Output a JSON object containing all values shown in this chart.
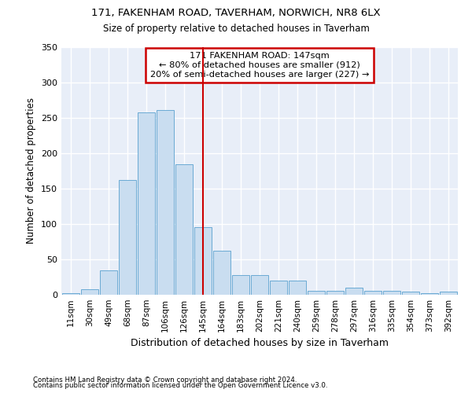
{
  "title1": "171, FAKENHAM ROAD, TAVERHAM, NORWICH, NR8 6LX",
  "title2": "Size of property relative to detached houses in Taverham",
  "xlabel": "Distribution of detached houses by size in Taverham",
  "ylabel": "Number of detached properties",
  "categories": [
    "11sqm",
    "30sqm",
    "49sqm",
    "68sqm",
    "87sqm",
    "106sqm",
    "126sqm",
    "145sqm",
    "164sqm",
    "183sqm",
    "202sqm",
    "221sqm",
    "240sqm",
    "259sqm",
    "278sqm",
    "297sqm",
    "316sqm",
    "335sqm",
    "354sqm",
    "373sqm",
    "392sqm"
  ],
  "values": [
    2,
    8,
    35,
    162,
    258,
    261,
    184,
    96,
    62,
    28,
    28,
    20,
    20,
    6,
    6,
    10,
    6,
    6,
    4,
    2,
    4
  ],
  "bar_color": "#c9ddf0",
  "bar_edge_color": "#6aaad4",
  "property_line_color": "#cc0000",
  "property_line_index": 7,
  "annotation_line1": "171 FAKENHAM ROAD: 147sqm",
  "annotation_line2": "← 80% of detached houses are smaller (912)",
  "annotation_line3": "20% of semi-detached houses are larger (227) →",
  "annotation_box_color": "#ffffff",
  "annotation_box_edge_color": "#cc0000",
  "footnote1": "Contains HM Land Registry data © Crown copyright and database right 2024.",
  "footnote2": "Contains public sector information licensed under the Open Government Licence v3.0.",
  "fig_background_color": "#ffffff",
  "plot_background_color": "#e8eef8",
  "grid_color": "#ffffff",
  "ylim": [
    0,
    350
  ],
  "yticks": [
    0,
    50,
    100,
    150,
    200,
    250,
    300,
    350
  ]
}
